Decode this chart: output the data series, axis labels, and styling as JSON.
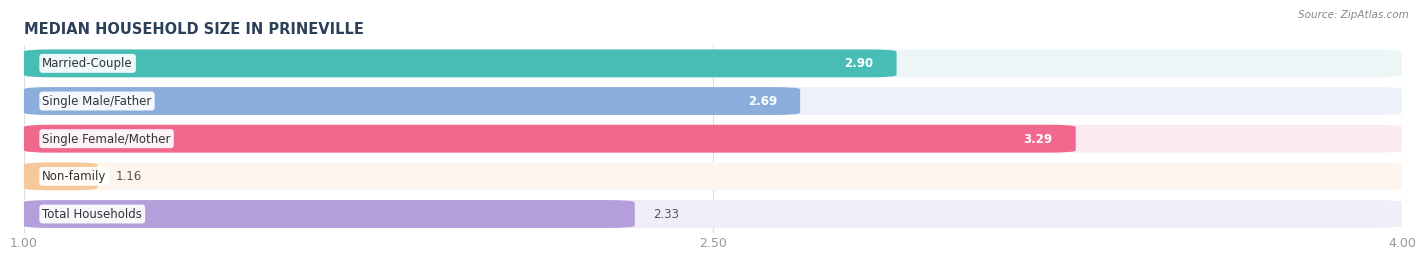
{
  "title": "MEDIAN HOUSEHOLD SIZE IN PRINEVILLE",
  "source": "Source: ZipAtlas.com",
  "categories": [
    "Married-Couple",
    "Single Male/Father",
    "Single Female/Mother",
    "Non-family",
    "Total Households"
  ],
  "values": [
    2.9,
    2.69,
    3.29,
    1.16,
    2.33
  ],
  "bar_colors": [
    "#47BDB6",
    "#8BAEDD",
    "#F0688E",
    "#F5C99A",
    "#B59FDA"
  ],
  "bar_bg_colors": [
    "#EDF6F6",
    "#ECF1FA",
    "#FCEAF0",
    "#FDF5EE",
    "#F2EEF9"
  ],
  "label_bg_colors": [
    "#EDF6F6",
    "#ECF1FA",
    "#FCEAF0",
    "#FDF5EE",
    "#F2EEF9"
  ],
  "xmin": 1.0,
  "xmax": 4.0,
  "xticks": [
    1.0,
    2.5,
    4.0
  ],
  "xtick_labels": [
    "1.00",
    "2.50",
    "4.00"
  ],
  "label_fontsize": 8.5,
  "value_fontsize": 8.5,
  "title_fontsize": 10.5,
  "bar_height": 0.62,
  "background_color": "#ffffff",
  "value_inside_threshold": 2.5
}
